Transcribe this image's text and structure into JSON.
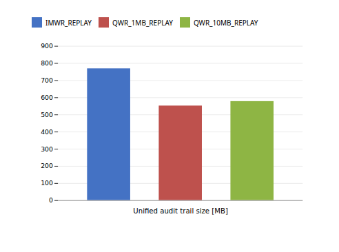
{
  "chart_data": {
    "type": "bar",
    "categories": [
      "IMWR_REPLAY",
      "QWR_1MB_REPLAY",
      "QWR_10MB_REPLAY"
    ],
    "values": [
      769,
      552,
      578
    ],
    "colors": [
      "#4472C4",
      "#BE514D",
      "#8EB544"
    ],
    "xlabel": "Unified audit trail size [MB]",
    "ylim": [
      0,
      900
    ],
    "yticks": [
      0,
      100,
      200,
      300,
      400,
      500,
      600,
      700,
      800,
      900
    ],
    "grid": true,
    "legend": "upper left",
    "tick_labels": "y"
  }
}
